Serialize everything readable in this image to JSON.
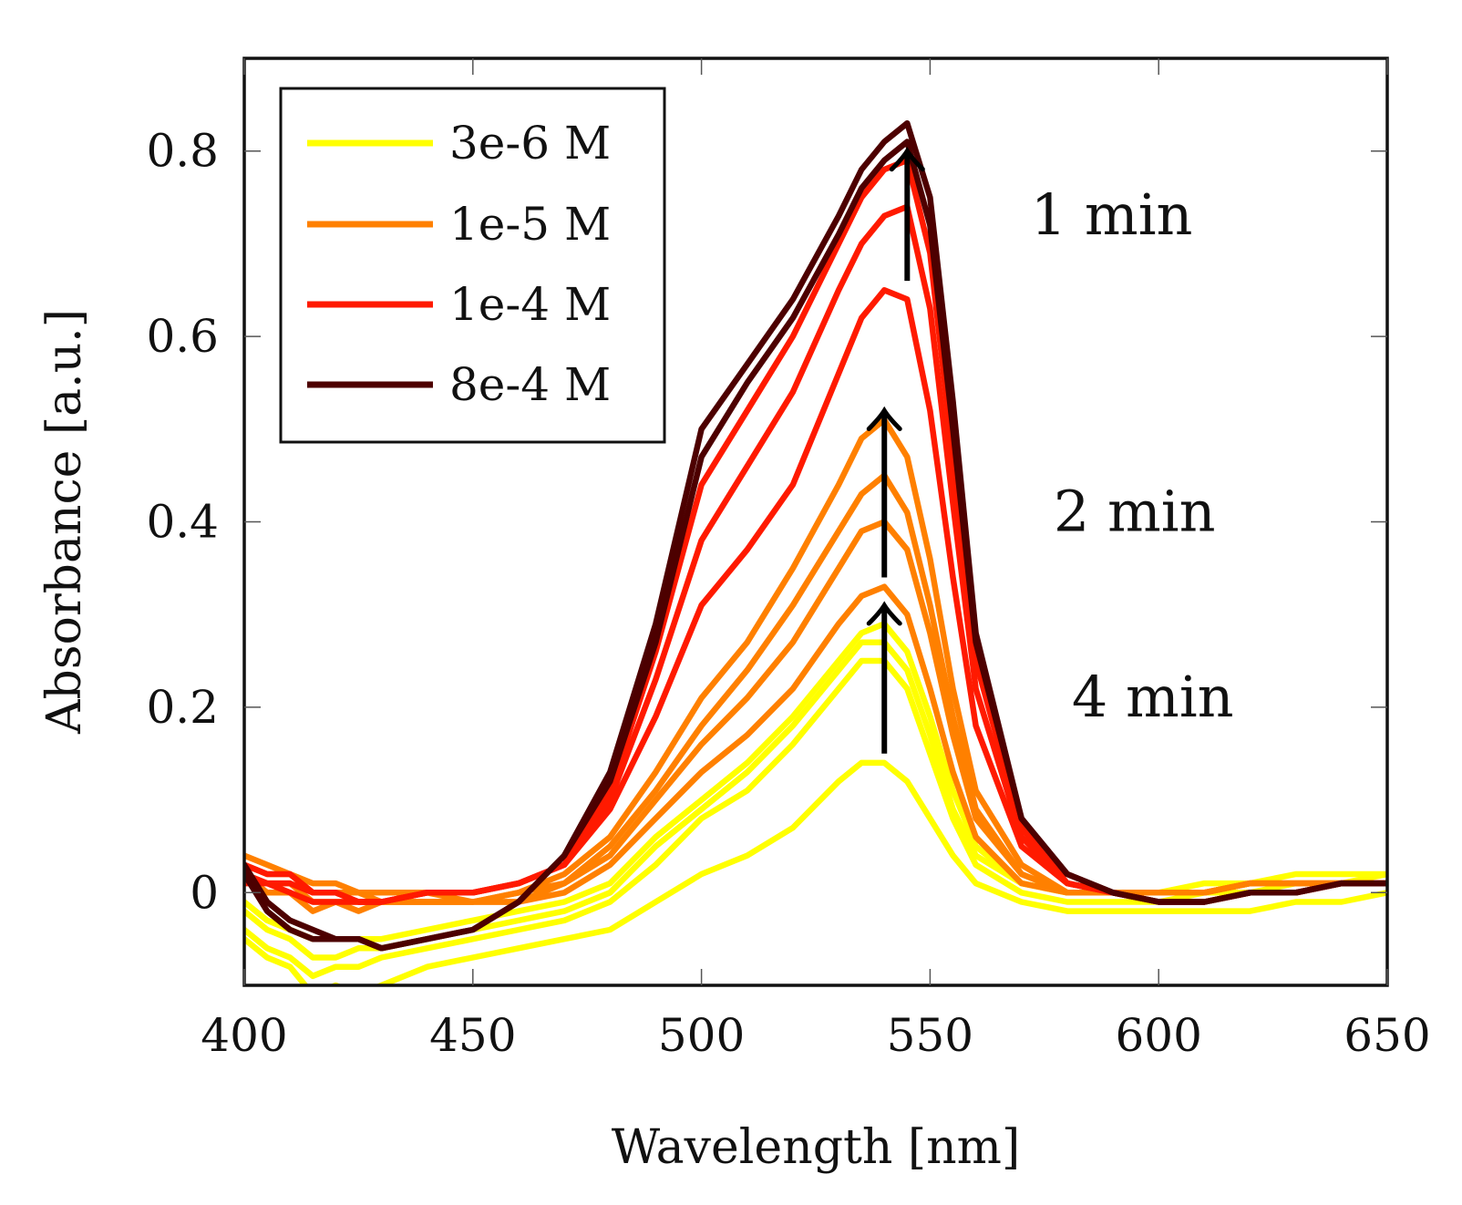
{
  "chart_data": {
    "type": "line",
    "xlabel": "Wavelength [nm]",
    "ylabel": "Absorbance [a.u.]",
    "xlim": [
      400,
      650
    ],
    "ylim": [
      -0.1,
      0.9
    ],
    "xticks": [
      400,
      450,
      500,
      550,
      600,
      650
    ],
    "yticks": [
      0,
      0.2,
      0.4,
      0.6,
      0.8
    ],
    "xtick_labels": [
      "400",
      "450",
      "500",
      "550",
      "600",
      "650"
    ],
    "ytick_labels": [
      "0",
      "0.2",
      "0.4",
      "0.6",
      "0.8"
    ],
    "grid": false,
    "legend_position": "top-left",
    "legend": [
      {
        "label": "3e-6 M",
        "color": "#ffff00"
      },
      {
        "label": "1e-5 M",
        "color": "#ff8000"
      },
      {
        "label": "1e-4 M",
        "color": "#ff1a00"
      },
      {
        "label": "8e-4 M",
        "color": "#4d0000"
      }
    ],
    "annotations": [
      {
        "text": "1 min",
        "x": 572,
        "y": 0.71
      },
      {
        "text": "2 min",
        "x": 577,
        "y": 0.39
      },
      {
        "text": "4 min",
        "x": 581,
        "y": 0.19
      }
    ],
    "arrows": [
      {
        "x": 545,
        "y_start": 0.66,
        "y_end": 0.8
      },
      {
        "x": 540,
        "y_start": 0.34,
        "y_end": 0.52
      },
      {
        "x": 540,
        "y_start": 0.15,
        "y_end": 0.31
      }
    ],
    "series": [
      {
        "name": "3e-6 M",
        "color": "#ffff00",
        "x": [
          400,
          405,
          410,
          415,
          420,
          425,
          430,
          440,
          450,
          460,
          470,
          480,
          490,
          500,
          510,
          520,
          530,
          535,
          540,
          545,
          550,
          555,
          560,
          570,
          580,
          590,
          600,
          610,
          620,
          630,
          640,
          650
        ],
        "y": [
          -0.05,
          -0.07,
          -0.08,
          -0.11,
          -0.1,
          -0.11,
          -0.1,
          -0.08,
          -0.07,
          -0.06,
          -0.05,
          -0.04,
          -0.01,
          0.02,
          0.04,
          0.07,
          0.12,
          0.14,
          0.14,
          0.12,
          0.08,
          0.04,
          0.01,
          -0.01,
          -0.02,
          -0.02,
          -0.02,
          -0.02,
          -0.02,
          -0.01,
          -0.01,
          0.0
        ]
      },
      {
        "name": "3e-6 M",
        "color": "#ffff00",
        "x": [
          400,
          405,
          410,
          415,
          420,
          425,
          430,
          440,
          450,
          460,
          470,
          480,
          490,
          500,
          510,
          520,
          530,
          535,
          540,
          545,
          550,
          555,
          560,
          570,
          580,
          590,
          600,
          610,
          620,
          630,
          640,
          650
        ],
        "y": [
          -0.04,
          -0.06,
          -0.07,
          -0.09,
          -0.08,
          -0.08,
          -0.07,
          -0.06,
          -0.05,
          -0.04,
          -0.03,
          -0.01,
          0.03,
          0.08,
          0.11,
          0.16,
          0.22,
          0.25,
          0.25,
          0.22,
          0.15,
          0.08,
          0.03,
          0.0,
          -0.01,
          -0.01,
          -0.01,
          0.0,
          0.0,
          0.01,
          0.01,
          0.01
        ]
      },
      {
        "name": "3e-6 M",
        "color": "#ffff00",
        "x": [
          400,
          405,
          410,
          415,
          420,
          425,
          430,
          440,
          450,
          460,
          470,
          480,
          490,
          500,
          510,
          520,
          530,
          535,
          540,
          545,
          550,
          555,
          560,
          570,
          580,
          590,
          600,
          610,
          620,
          630,
          640,
          650
        ],
        "y": [
          -0.02,
          -0.04,
          -0.05,
          -0.07,
          -0.07,
          -0.06,
          -0.06,
          -0.05,
          -0.04,
          -0.03,
          -0.02,
          0.0,
          0.05,
          0.09,
          0.13,
          0.18,
          0.24,
          0.27,
          0.27,
          0.24,
          0.17,
          0.09,
          0.04,
          0.01,
          0.0,
          0.0,
          0.0,
          0.0,
          0.01,
          0.01,
          0.01,
          0.02
        ]
      },
      {
        "name": "3e-6 M",
        "color": "#ffff00",
        "x": [
          400,
          405,
          410,
          415,
          420,
          425,
          430,
          440,
          450,
          460,
          470,
          480,
          490,
          500,
          510,
          520,
          530,
          535,
          540,
          545,
          550,
          555,
          560,
          570,
          580,
          590,
          600,
          610,
          620,
          630,
          640,
          650
        ],
        "y": [
          -0.01,
          -0.03,
          -0.04,
          -0.05,
          -0.05,
          -0.05,
          -0.05,
          -0.04,
          -0.03,
          -0.02,
          -0.01,
          0.01,
          0.06,
          0.1,
          0.14,
          0.19,
          0.25,
          0.28,
          0.29,
          0.26,
          0.19,
          0.11,
          0.05,
          0.01,
          0.0,
          0.0,
          0.0,
          0.01,
          0.01,
          0.02,
          0.02,
          0.02
        ]
      },
      {
        "name": "1e-5 M",
        "color": "#ff8000",
        "x": [
          400,
          405,
          410,
          415,
          420,
          425,
          430,
          440,
          450,
          460,
          470,
          480,
          490,
          500,
          510,
          520,
          530,
          535,
          540,
          545,
          550,
          555,
          560,
          570,
          580,
          590,
          600,
          610,
          620,
          630,
          640,
          650
        ],
        "y": [
          0.02,
          0.0,
          0.0,
          -0.02,
          -0.01,
          -0.02,
          -0.01,
          -0.01,
          -0.01,
          -0.01,
          0.0,
          0.03,
          0.08,
          0.13,
          0.17,
          0.22,
          0.29,
          0.32,
          0.33,
          0.3,
          0.22,
          0.13,
          0.06,
          0.01,
          0.0,
          0.0,
          0.0,
          0.0,
          0.01,
          0.01,
          0.01,
          0.01
        ]
      },
      {
        "name": "1e-5 M",
        "color": "#ff8000",
        "x": [
          400,
          405,
          410,
          415,
          420,
          425,
          430,
          440,
          450,
          460,
          470,
          480,
          490,
          500,
          510,
          520,
          530,
          535,
          540,
          545,
          550,
          555,
          560,
          570,
          580,
          590,
          600,
          610,
          620,
          630,
          640,
          650
        ],
        "y": [
          0.02,
          0.01,
          0.01,
          -0.01,
          -0.01,
          -0.01,
          -0.01,
          -0.01,
          -0.01,
          -0.01,
          0.01,
          0.04,
          0.1,
          0.16,
          0.21,
          0.27,
          0.35,
          0.39,
          0.4,
          0.37,
          0.28,
          0.17,
          0.08,
          0.02,
          0.0,
          0.0,
          0.0,
          0.0,
          0.01,
          0.01,
          0.01,
          0.01
        ]
      },
      {
        "name": "1e-5 M",
        "color": "#ff8000",
        "x": [
          400,
          405,
          410,
          415,
          420,
          425,
          430,
          440,
          450,
          460,
          470,
          480,
          490,
          500,
          510,
          520,
          530,
          535,
          540,
          545,
          550,
          555,
          560,
          570,
          580,
          590,
          600,
          610,
          620,
          630,
          640,
          650
        ],
        "y": [
          0.03,
          0.02,
          0.02,
          0.0,
          0.0,
          0.0,
          -0.01,
          -0.01,
          -0.01,
          0.0,
          0.01,
          0.05,
          0.11,
          0.18,
          0.24,
          0.31,
          0.39,
          0.43,
          0.45,
          0.41,
          0.31,
          0.19,
          0.09,
          0.02,
          0.0,
          0.0,
          0.0,
          0.0,
          0.01,
          0.01,
          0.01,
          0.01
        ]
      },
      {
        "name": "1e-5 M",
        "color": "#ff8000",
        "x": [
          400,
          405,
          410,
          415,
          420,
          425,
          430,
          440,
          450,
          460,
          470,
          480,
          490,
          500,
          510,
          520,
          530,
          535,
          540,
          545,
          550,
          555,
          560,
          570,
          580,
          590,
          600,
          610,
          620,
          630,
          640,
          650
        ],
        "y": [
          0.04,
          0.03,
          0.02,
          0.01,
          0.01,
          0.0,
          0.0,
          0.0,
          -0.01,
          0.0,
          0.02,
          0.06,
          0.13,
          0.21,
          0.27,
          0.35,
          0.44,
          0.49,
          0.51,
          0.47,
          0.36,
          0.22,
          0.11,
          0.03,
          0.0,
          0.0,
          0.0,
          0.0,
          0.01,
          0.01,
          0.01,
          0.01
        ]
      },
      {
        "name": "1e-4 M",
        "color": "#ff1a00",
        "x": [
          400,
          405,
          410,
          415,
          420,
          425,
          430,
          440,
          450,
          460,
          470,
          480,
          490,
          500,
          510,
          520,
          530,
          535,
          540,
          545,
          550,
          555,
          560,
          570,
          580,
          590,
          600,
          610,
          620,
          630,
          640,
          650
        ],
        "y": [
          0.03,
          0.02,
          0.02,
          0.0,
          0.0,
          -0.01,
          -0.01,
          0.0,
          0.0,
          0.01,
          0.03,
          0.09,
          0.19,
          0.31,
          0.37,
          0.44,
          0.56,
          0.62,
          0.65,
          0.64,
          0.52,
          0.34,
          0.18,
          0.05,
          0.01,
          0.0,
          -0.01,
          -0.01,
          0.0,
          0.0,
          0.01,
          0.01
        ]
      },
      {
        "name": "1e-4 M",
        "color": "#ff1a00",
        "x": [
          400,
          405,
          410,
          415,
          420,
          425,
          430,
          440,
          450,
          460,
          470,
          480,
          490,
          500,
          510,
          520,
          530,
          535,
          540,
          545,
          550,
          555,
          560,
          570,
          580,
          590,
          600,
          610,
          620,
          630,
          640,
          650
        ],
        "y": [
          0.02,
          0.01,
          0.01,
          0.0,
          0.0,
          -0.01,
          -0.01,
          0.0,
          0.0,
          0.01,
          0.03,
          0.1,
          0.23,
          0.38,
          0.46,
          0.54,
          0.65,
          0.7,
          0.73,
          0.74,
          0.63,
          0.42,
          0.22,
          0.06,
          0.01,
          0.0,
          -0.01,
          -0.01,
          0.0,
          0.0,
          0.01,
          0.01
        ]
      },
      {
        "name": "1e-4 M",
        "color": "#ff1a00",
        "x": [
          400,
          405,
          410,
          415,
          420,
          425,
          430,
          440,
          450,
          460,
          470,
          480,
          490,
          500,
          510,
          520,
          530,
          535,
          540,
          545,
          550,
          555,
          560,
          570,
          580,
          590,
          600,
          610,
          620,
          630,
          640,
          650
        ],
        "y": [
          0.01,
          0.01,
          0.0,
          -0.01,
          -0.01,
          -0.01,
          -0.01,
          0.0,
          0.0,
          0.01,
          0.03,
          0.11,
          0.26,
          0.44,
          0.52,
          0.6,
          0.7,
          0.75,
          0.78,
          0.79,
          0.69,
          0.47,
          0.25,
          0.07,
          0.01,
          0.0,
          -0.01,
          -0.01,
          0.0,
          0.0,
          0.01,
          0.01
        ]
      },
      {
        "name": "8e-4 M",
        "color": "#4d0000",
        "x": [
          400,
          405,
          410,
          415,
          420,
          425,
          430,
          440,
          450,
          460,
          470,
          480,
          490,
          500,
          510,
          520,
          530,
          535,
          540,
          545,
          550,
          555,
          560,
          570,
          580,
          590,
          600,
          610,
          620,
          630,
          640,
          650
        ],
        "y": [
          0.02,
          -0.02,
          -0.04,
          -0.05,
          -0.05,
          -0.05,
          -0.06,
          -0.05,
          -0.04,
          -0.01,
          0.04,
          0.12,
          0.27,
          0.47,
          0.55,
          0.62,
          0.71,
          0.76,
          0.79,
          0.81,
          0.72,
          0.5,
          0.27,
          0.08,
          0.02,
          0.0,
          -0.01,
          -0.01,
          0.0,
          0.0,
          0.01,
          0.01
        ]
      },
      {
        "name": "8e-4 M",
        "color": "#4d0000",
        "x": [
          400,
          405,
          410,
          415,
          420,
          425,
          430,
          440,
          450,
          460,
          470,
          480,
          490,
          500,
          510,
          520,
          530,
          535,
          540,
          545,
          550,
          555,
          560,
          570,
          580,
          590,
          600,
          610,
          620,
          630,
          640,
          650
        ],
        "y": [
          0.03,
          -0.01,
          -0.03,
          -0.04,
          -0.05,
          -0.05,
          -0.06,
          -0.05,
          -0.04,
          -0.01,
          0.04,
          0.13,
          0.29,
          0.5,
          0.57,
          0.64,
          0.73,
          0.78,
          0.81,
          0.83,
          0.75,
          0.53,
          0.28,
          0.08,
          0.02,
          0.0,
          -0.01,
          -0.01,
          0.0,
          0.0,
          0.01,
          0.01
        ]
      }
    ]
  }
}
